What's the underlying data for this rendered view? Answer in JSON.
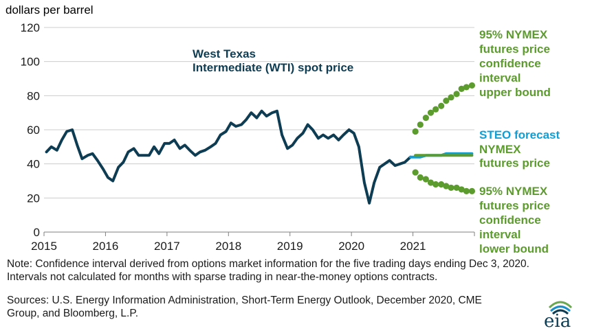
{
  "chart_data": {
    "type": "line",
    "unit_label": "dollars per barrel",
    "ylim": [
      0,
      120
    ],
    "yticks": [
      "0",
      "20",
      "40",
      "60",
      "80",
      "100",
      "120"
    ],
    "xlim": [
      2015,
      2022
    ],
    "xticks": [
      "2015",
      "2016",
      "2017",
      "2018",
      "2019",
      "2020",
      "2021"
    ],
    "grid": "horizontal",
    "colors": {
      "wti": "#0d3c53",
      "steo": "#0f9ed5",
      "nymex": "#5c9b2e",
      "grid": "#cccccc"
    },
    "series": [
      {
        "key": "wti",
        "name_lines": [
          "West Texas",
          "Intermediate (WTI) spot price"
        ],
        "style": "line",
        "x": [
          2015.04,
          2015.12,
          2015.21,
          2015.29,
          2015.37,
          2015.46,
          2015.54,
          2015.62,
          2015.71,
          2015.79,
          2015.87,
          2015.96,
          2016.04,
          2016.12,
          2016.21,
          2016.29,
          2016.37,
          2016.46,
          2016.54,
          2016.62,
          2016.71,
          2016.79,
          2016.87,
          2016.96,
          2017.04,
          2017.12,
          2017.21,
          2017.29,
          2017.37,
          2017.46,
          2017.54,
          2017.62,
          2017.71,
          2017.79,
          2017.87,
          2017.96,
          2018.04,
          2018.12,
          2018.21,
          2018.29,
          2018.37,
          2018.46,
          2018.54,
          2018.62,
          2018.71,
          2018.79,
          2018.87,
          2018.96,
          2019.04,
          2019.12,
          2019.21,
          2019.29,
          2019.37,
          2019.46,
          2019.54,
          2019.62,
          2019.71,
          2019.79,
          2019.87,
          2019.96,
          2020.04,
          2020.12,
          2020.21,
          2020.29,
          2020.37,
          2020.46,
          2020.54,
          2020.62,
          2020.71,
          2020.79,
          2020.87,
          2020.96
        ],
        "y": [
          47,
          50,
          48,
          54,
          59,
          60,
          51,
          43,
          45,
          46,
          42,
          37,
          32,
          30,
          38,
          41,
          47,
          49,
          45,
          45,
          45,
          50,
          46,
          52,
          52,
          54,
          49,
          51,
          48,
          45,
          47,
          48,
          50,
          52,
          57,
          59,
          64,
          62,
          63,
          66,
          70,
          67,
          71,
          68,
          70,
          71,
          57,
          49,
          51,
          55,
          58,
          63,
          60,
          55,
          57,
          55,
          57,
          54,
          57,
          60,
          58,
          50,
          29,
          17,
          29,
          38,
          40,
          42,
          39,
          40,
          41,
          44
        ]
      },
      {
        "key": "steo",
        "name_lines": [
          "STEO forecast"
        ],
        "style": "line",
        "x": [
          2020.96,
          2021.04,
          2021.12,
          2021.21,
          2021.29,
          2021.37,
          2021.46,
          2021.54,
          2021.62,
          2021.71,
          2021.79,
          2021.87,
          2021.96
        ],
        "y": [
          44,
          44,
          44,
          45,
          45,
          45,
          45,
          46,
          46,
          46,
          46,
          46,
          46
        ]
      },
      {
        "key": "nymex",
        "name_lines": [
          "NYMEX",
          "futures price"
        ],
        "style": "line",
        "x": [
          2021.04,
          2021.12,
          2021.21,
          2021.29,
          2021.37,
          2021.46,
          2021.54,
          2021.62,
          2021.71,
          2021.79,
          2021.87,
          2021.96
        ],
        "y": [
          45,
          45,
          45,
          45,
          45,
          45,
          45,
          45,
          45,
          45,
          45,
          45
        ]
      },
      {
        "key": "upper",
        "name_lines": [
          "95% NYMEX",
          "futures price",
          "confidence",
          "interval",
          "upper bound"
        ],
        "style": "dots",
        "x": [
          2021.04,
          2021.12,
          2021.21,
          2021.29,
          2021.37,
          2021.46,
          2021.54,
          2021.62,
          2021.71,
          2021.79,
          2021.87,
          2021.96
        ],
        "y": [
          59,
          63,
          67,
          70,
          72,
          74,
          77,
          79,
          81,
          84,
          85,
          86
        ]
      },
      {
        "key": "lower",
        "name_lines": [
          "95% NYMEX",
          "futures price",
          "confidence",
          "interval",
          "lower bound"
        ],
        "style": "dots",
        "x": [
          2021.04,
          2021.12,
          2021.21,
          2021.29,
          2021.37,
          2021.46,
          2021.54,
          2021.62,
          2021.71,
          2021.79,
          2021.87,
          2021.96
        ],
        "y": [
          35,
          32,
          31,
          29,
          28,
          28,
          27,
          26,
          26,
          25,
          24,
          24
        ]
      }
    ]
  },
  "notes": {
    "note": "Note: Confidence interval derived from options market information for the five trading days ending Dec 3, 2020. Intervals not calculated for months with sparse trading in near-the-money options contracts.",
    "sources": "Sources: U.S. Energy Information Administration, Short-Term Energy Outlook, December 2020, CME Group, and Bloomberg, L.P."
  },
  "logo": {
    "text": "eia"
  }
}
